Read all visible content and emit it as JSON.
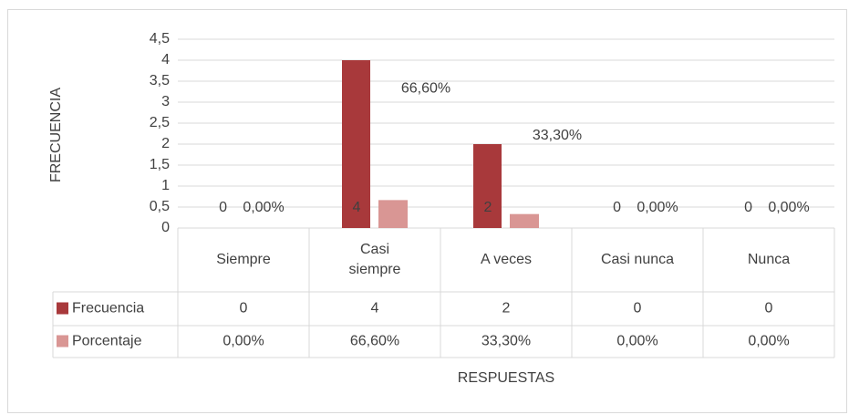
{
  "chart_data": {
    "type": "bar",
    "y_label": "FRECUENCIA",
    "x_label": "RESPUESTAS",
    "categories": [
      "Siempre",
      "Casi siempre",
      "A veces",
      "Casi nunca",
      "Nunca"
    ],
    "series": [
      {
        "name": "Frecuencia",
        "color": "#a8393b",
        "values": [
          0,
          4,
          2,
          0,
          0
        ]
      },
      {
        "name": "Porcentaje",
        "color": "#d99694",
        "values": [
          0,
          0.666,
          0.333,
          0,
          0
        ],
        "value_labels": [
          "0,00%",
          "66,60%",
          "33,30%",
          "0,00%",
          "0,00%"
        ]
      }
    ],
    "ylim": [
      0,
      4.5
    ],
    "yticks": [
      0,
      {
        "value": 0.5,
        "label": "0,5"
      },
      1,
      {
        "value": 1.5,
        "label": "1,5"
      },
      2,
      {
        "value": 2.5,
        "label": "2,5"
      },
      3,
      {
        "value": 3.5,
        "label": "3,5"
      },
      4,
      {
        "value": 4.5,
        "label": "4,5"
      }
    ],
    "grid": true,
    "data_table": true
  }
}
